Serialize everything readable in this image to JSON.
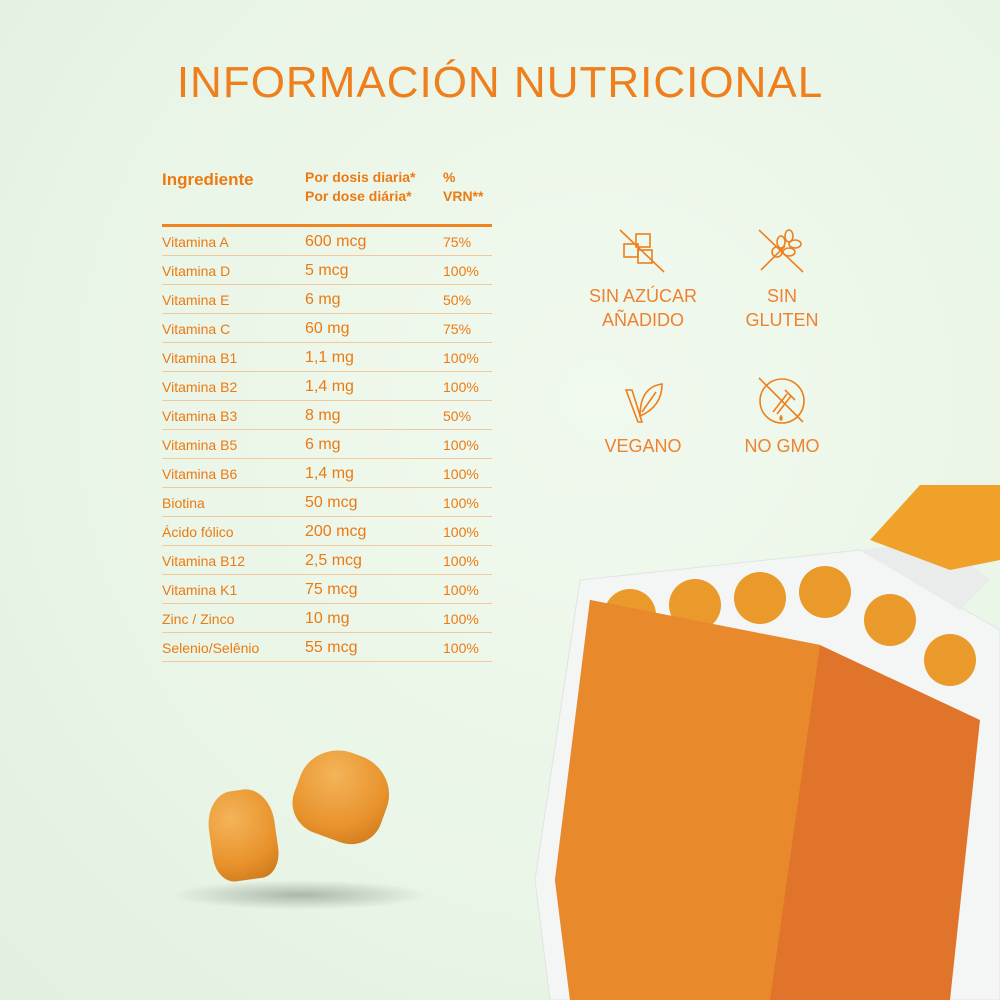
{
  "title": "INFORMACIÓN NUTRICIONAL",
  "table": {
    "headers": {
      "ingredient": "Ingrediente",
      "dose_es": "Por dosis diaria*",
      "dose_pt": "Por dose diária*",
      "vrn_1": "%",
      "vrn_2": "VRN**"
    },
    "rows": [
      {
        "name": "Vitamina A",
        "dose": "600 mcg",
        "vrn": "75%"
      },
      {
        "name": "Vitamina D",
        "dose": "5 mcg",
        "vrn": "100%"
      },
      {
        "name": "Vitamina E",
        "dose": "6 mg",
        "vrn": "50%"
      },
      {
        "name": "Vitamina C",
        "dose": "60 mg",
        "vrn": "75%"
      },
      {
        "name": "Vitamina B1",
        "dose": "1,1 mg",
        "vrn": "100%"
      },
      {
        "name": "Vitamina B2",
        "dose": "1,4 mg",
        "vrn": "100%"
      },
      {
        "name": "Vitamina B3",
        "dose": "8 mg",
        "vrn": "50%"
      },
      {
        "name": "Vitamina B5",
        "dose": "6 mg",
        "vrn": "100%"
      },
      {
        "name": "Vitamina B6",
        "dose": "1,4 mg",
        "vrn": "100%"
      },
      {
        "name": "Biotina",
        "dose": "50 mcg",
        "vrn": "100%"
      },
      {
        "name": "Ácido fólico",
        "dose": "200 mcg",
        "vrn": "100%"
      },
      {
        "name": "Vitamina B12",
        "dose": "2,5 mcg",
        "vrn": "100%"
      },
      {
        "name": "Vitamina K1",
        "dose": "75 mcg",
        "vrn": "100%"
      },
      {
        "name": "Zinc / Zinco",
        "dose": "10 mg",
        "vrn": "100%"
      },
      {
        "name": "Selenio/Selênio",
        "dose": "55 mcg",
        "vrn": "100%"
      }
    ]
  },
  "badges": [
    {
      "line1": "SIN AZÚCAR",
      "line2": "AÑADIDO",
      "icon": "no-sugar-icon"
    },
    {
      "line1": "SIN",
      "line2": "GLUTEN",
      "icon": "no-gluten-icon"
    },
    {
      "line1": "VEGANO",
      "line2": "",
      "icon": "leaf-icon"
    },
    {
      "line1": "NO GMO",
      "line2": "",
      "icon": "no-gmo-icon"
    }
  ],
  "colors": {
    "accent": "#ee7f1c",
    "background": "#eaf6e7"
  }
}
